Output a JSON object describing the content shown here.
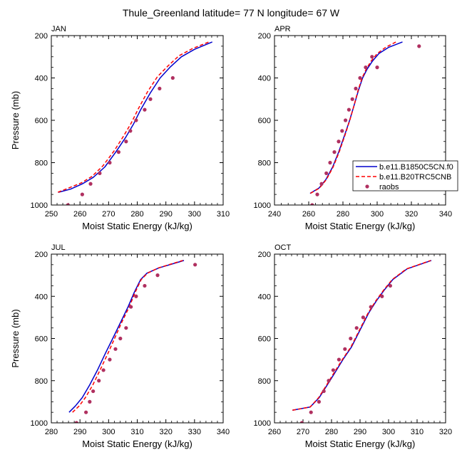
{
  "title": "Thule_Greenland  latitude= 77 N longitude= 67 W",
  "legend": {
    "entries": [
      {
        "label": "b.e11.B1850C5CN.f0",
        "color": "#0000cc",
        "style": "solid"
      },
      {
        "label": "b.e11.B20TRC5CNB",
        "color": "#ff0000",
        "style": "dashed"
      },
      {
        "label": "raobs",
        "color": "#b03060",
        "style": "marker"
      }
    ]
  },
  "chart_data": [
    {
      "type": "line",
      "panel_label": "JAN",
      "xlabel": "Moist Static Energy (kJ/kg)",
      "ylabel": "Pressure (mb)",
      "xlim": [
        250,
        310
      ],
      "ylim": [
        1000,
        200
      ],
      "xticks": [
        250,
        260,
        270,
        280,
        290,
        300,
        310
      ],
      "yticks": [
        200,
        400,
        600,
        800,
        1000
      ],
      "series": [
        {
          "name": "b.e11.B1850C5CN.f0",
          "color": "#0000cc",
          "style": "solid",
          "x": [
            252.5,
            256.7,
            260.8,
            264.6,
            268.7,
            272.5,
            276.0,
            278.6,
            281.2,
            284.6,
            288.0,
            291.4,
            295.4,
            300.0,
            306.2
          ],
          "y": [
            940,
            925,
            900,
            870,
            820,
            750,
            680,
            620,
            550,
            470,
            400,
            350,
            300,
            265,
            230
          ]
        },
        {
          "name": "b.e11.B20TRC5CNB",
          "color": "#ff0000",
          "style": "dashed",
          "x": [
            252.3,
            256.0,
            260.5,
            264.2,
            268.0,
            271.9,
            275.2,
            277.8,
            280.4,
            283.6,
            287.0,
            290.6,
            294.6,
            299.2,
            305.4
          ],
          "y": [
            940,
            920,
            895,
            865,
            815,
            745,
            675,
            615,
            545,
            465,
            395,
            345,
            295,
            262,
            228
          ]
        },
        {
          "name": "raobs",
          "color": "#b03060",
          "style": "marker",
          "x": [
            255.8,
            260.8,
            263.7,
            266.9,
            270.4,
            273.5,
            276.1,
            277.6,
            279.6,
            282.6,
            284.6,
            287.8,
            292.4
          ],
          "y": [
            1000,
            950,
            900,
            850,
            800,
            750,
            700,
            650,
            600,
            550,
            500,
            450,
            400
          ]
        }
      ]
    },
    {
      "type": "line",
      "panel_label": "APR",
      "xlabel": "Moist Static Energy (kJ/kg)",
      "ylabel": "",
      "xlim": [
        240,
        340
      ],
      "ylim": [
        1000,
        200
      ],
      "xticks": [
        240,
        260,
        280,
        300,
        320,
        340
      ],
      "yticks": [
        200,
        400,
        600,
        800,
        1000
      ],
      "series": [
        {
          "name": "b.e11.B1850C5CN.f0",
          "color": "#0000cc",
          "style": "solid",
          "x": [
            260.8,
            266.0,
            270.0,
            274.0,
            277.5,
            281.0,
            283.9,
            286.5,
            289.0,
            291.5,
            294.0,
            297.3,
            301.0,
            306.8,
            314.8
          ],
          "y": [
            945,
            920,
            880,
            820,
            750,
            670,
            600,
            530,
            460,
            400,
            360,
            320,
            285,
            255,
            230
          ]
        },
        {
          "name": "b.e11.B20TRC5CNB",
          "color": "#ff0000",
          "style": "dashed",
          "x": [
            261.0,
            266.3,
            270.3,
            274.3,
            277.8,
            281.2,
            284.0,
            286.5,
            288.8,
            291.2,
            293.5,
            296.5,
            300.0,
            305.0,
            311.5
          ],
          "y": [
            945,
            920,
            880,
            820,
            750,
            670,
            600,
            530,
            460,
            400,
            360,
            320,
            285,
            255,
            228
          ]
        },
        {
          "name": "raobs",
          "color": "#b03060",
          "style": "marker",
          "x": [
            262.0,
            265.0,
            267.5,
            270.3,
            272.5,
            275.0,
            277.5,
            279.5,
            281.5,
            283.5,
            285.5,
            287.5,
            290.0,
            293.3,
            297.0,
            300.0,
            324.5
          ],
          "y": [
            1000,
            950,
            900,
            850,
            800,
            750,
            700,
            650,
            600,
            550,
            500,
            450,
            400,
            350,
            300,
            350,
            250
          ]
        }
      ]
    },
    {
      "type": "line",
      "panel_label": "JUL",
      "xlabel": "Moist Static Energy (kJ/kg)",
      "ylabel": "Pressure (mb)",
      "xlim": [
        280,
        340
      ],
      "ylim": [
        1000,
        200
      ],
      "xticks": [
        280,
        290,
        300,
        310,
        320,
        330,
        340
      ],
      "yticks": [
        200,
        400,
        600,
        800,
        1000
      ],
      "series": [
        {
          "name": "b.e11.B1850C5CN.f0",
          "color": "#0000cc",
          "style": "solid",
          "x": [
            286.2,
            288.4,
            290.8,
            293.4,
            296.1,
            298.9,
            301.8,
            304.3,
            306.8,
            309.0,
            311.2,
            313.4,
            317.6,
            326.3
          ],
          "y": [
            950,
            920,
            880,
            820,
            750,
            670,
            590,
            520,
            450,
            380,
            320,
            290,
            265,
            230
          ]
        },
        {
          "name": "b.e11.B20TRC5CNB",
          "color": "#ff0000",
          "style": "dashed",
          "x": [
            287.4,
            289.7,
            291.9,
            294.5,
            297.0,
            299.8,
            302.4,
            304.7,
            307.2,
            309.3,
            311.4,
            313.6,
            317.4,
            325.9
          ],
          "y": [
            950,
            920,
            880,
            820,
            750,
            670,
            590,
            520,
            450,
            380,
            320,
            290,
            265,
            230
          ]
        },
        {
          "name": "raobs",
          "color": "#b03060",
          "style": "marker",
          "x": [
            288.8,
            292.1,
            293.4,
            294.6,
            296.6,
            298.2,
            300.4,
            302.4,
            304.1,
            306.1,
            307.8,
            309.6,
            312.6,
            317.1,
            330.2
          ],
          "y": [
            1000,
            950,
            900,
            850,
            800,
            750,
            700,
            650,
            600,
            550,
            450,
            400,
            350,
            300,
            250
          ]
        }
      ]
    },
    {
      "type": "line",
      "panel_label": "OCT",
      "xlabel": "Moist Static Energy (kJ/kg)",
      "ylabel": "",
      "xlim": [
        260,
        320
      ],
      "ylim": [
        1000,
        200
      ],
      "xticks": [
        260,
        270,
        280,
        290,
        300,
        310,
        320
      ],
      "yticks": [
        200,
        400,
        600,
        800,
        1000
      ],
      "series": [
        {
          "name": "b.e11.B1850C5CN.f0",
          "color": "#0000cc",
          "style": "solid",
          "x": [
            266.3,
            272.5,
            275.7,
            278.5,
            281.3,
            284.0,
            287.0,
            290.0,
            293.0,
            295.8,
            298.5,
            301.5,
            306.5,
            315.0
          ],
          "y": [
            940,
            925,
            880,
            820,
            760,
            700,
            640,
            560,
            480,
            420,
            370,
            320,
            270,
            230
          ]
        },
        {
          "name": "b.e11.B20TRC5CNB",
          "color": "#ff0000",
          "style": "dashed",
          "x": [
            266.3,
            272.5,
            275.5,
            278.3,
            281.0,
            283.8,
            286.8,
            289.8,
            292.8,
            295.6,
            298.3,
            301.3,
            306.3,
            314.8
          ],
          "y": [
            940,
            925,
            880,
            820,
            760,
            700,
            640,
            560,
            480,
            420,
            370,
            320,
            270,
            230
          ]
        },
        {
          "name": "raobs",
          "color": "#b03060",
          "style": "marker",
          "x": [
            269.6,
            272.8,
            275.6,
            277.3,
            279.0,
            280.6,
            282.6,
            284.7,
            286.7,
            288.8,
            291.1,
            293.8,
            297.7,
            300.6
          ],
          "y": [
            1000,
            950,
            900,
            850,
            800,
            750,
            700,
            650,
            600,
            550,
            500,
            450,
            400,
            350
          ]
        }
      ]
    }
  ]
}
